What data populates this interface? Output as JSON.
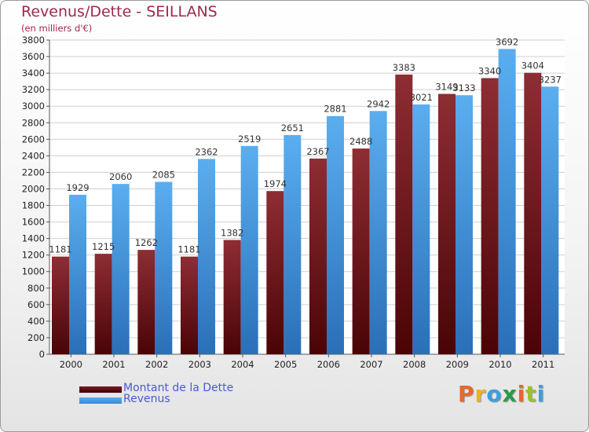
{
  "chart_data": {
    "type": "bar",
    "title": "Revenus/Dette - SEILLANS",
    "subtitle": "(en milliers d'€)",
    "categories": [
      "2000",
      "2001",
      "2002",
      "2003",
      "2004",
      "2005",
      "2006",
      "2007",
      "2008",
      "2009",
      "2010",
      "2011"
    ],
    "series": [
      {
        "name": "Montant de la Dette",
        "color": "#7a1a22",
        "values": [
          1181,
          1215,
          1262,
          1181,
          1382,
          1974,
          2367,
          2488,
          3383,
          3149,
          3340,
          3404
        ]
      },
      {
        "name": "Revenus",
        "color": "#4aa3e8",
        "values": [
          1929,
          2060,
          2085,
          2362,
          2519,
          2651,
          2881,
          2942,
          3021,
          3133,
          3692,
          3237
        ]
      }
    ],
    "ylim": [
      0,
      3800
    ],
    "ytick_step": 200,
    "grid": true,
    "legend": "bottom-left"
  },
  "logo": {
    "text": "Proxiti",
    "colors": [
      "#e8662a",
      "#f0b020",
      "#3aa0e0",
      "#2a9a4a",
      "#e8662a",
      "#9ac030",
      "#3aa0e0"
    ]
  }
}
